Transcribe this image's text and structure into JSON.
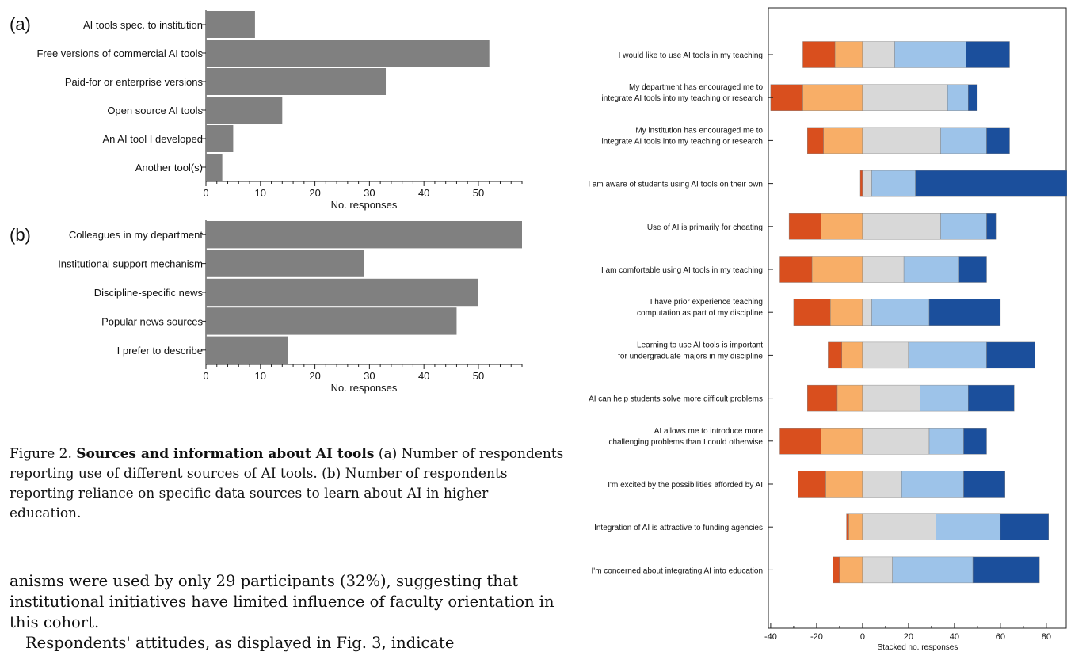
{
  "chart_data": [
    {
      "type": "bar",
      "orientation": "horizontal",
      "panel_label": "(a)",
      "categories": [
        "AI tools spec. to institution",
        "Free versions of commercial AI tools",
        "Paid-for or enterprise versions",
        "Open source AI tools",
        "An AI tool I developed",
        "Another tool(s)"
      ],
      "values": [
        9,
        52,
        33,
        14,
        5,
        3
      ],
      "xlabel": "No. responses",
      "xlim": [
        0,
        58
      ],
      "xticks": [
        0,
        10,
        20,
        30,
        40,
        50
      ],
      "bar_color": "#808080"
    },
    {
      "type": "bar",
      "orientation": "horizontal",
      "panel_label": "(b)",
      "categories": [
        "Colleagues in my department",
        "Institutional support mechanism",
        "Discipline-specific news",
        "Popular news sources",
        "I prefer to describe"
      ],
      "values": [
        58,
        29,
        50,
        46,
        15
      ],
      "xlabel": "No. responses",
      "xlim": [
        0,
        58
      ],
      "xticks": [
        0,
        10,
        20,
        30,
        40,
        50
      ],
      "bar_color": "#808080"
    },
    {
      "type": "bar",
      "orientation": "horizontal",
      "stacked": "diverging",
      "categories": [
        "I would like to use AI tools in my teaching",
        "My department has encouraged me to\nintegrate AI tools into my teaching or research",
        "My institution has encouraged me to\nintegrate AI tools into my teaching or research",
        "I am aware of students using AI tools on their own",
        "Use of AI is primarily for cheating",
        "I am comfortable using AI tools in my teaching",
        "I have prior experience teaching\ncomputation as part of my discipline",
        "Learning to use AI tools is important\nfor undergraduate majors in my discipline",
        "AI can help students solve more difficult problems",
        "AI allows me to introduce more\nchallenging problems than I could otherwise",
        "I'm excited by the possibilities afforded by AI",
        "Integration of AI is attractive to funding agencies",
        "I'm concerned about integrating AI into education"
      ],
      "colors": [
        "#d94f1e",
        "#f8ae67",
        "#d8d8d8",
        "#9dc3e9",
        "#1b4f9c"
      ],
      "segments": [
        [
          -26,
          -12,
          0,
          14,
          45,
          64
        ],
        [
          -40,
          -26,
          0,
          37,
          46,
          50
        ],
        [
          -24,
          -17,
          0,
          34,
          54,
          64
        ],
        [
          -1,
          0,
          0,
          4,
          23,
          89
        ],
        [
          -32,
          -18,
          0,
          34,
          54,
          58
        ],
        [
          -36,
          -22,
          0,
          18,
          42,
          54
        ],
        [
          -30,
          -14,
          0,
          4,
          29,
          60
        ],
        [
          -15,
          -9,
          0,
          20,
          54,
          75
        ],
        [
          -24,
          -11,
          0,
          25,
          46,
          66
        ],
        [
          -36,
          -18,
          0,
          29,
          44,
          54
        ],
        [
          -28,
          -16,
          0,
          17,
          44,
          62
        ],
        [
          -7,
          -6,
          0,
          32,
          60,
          81
        ],
        [
          -13,
          -10,
          0,
          13,
          48,
          77
        ]
      ],
      "xlabel": "Stacked no. responses",
      "xlim": [
        -41,
        89
      ],
      "xticks": [
        -40,
        -20,
        0,
        20,
        40,
        60,
        80
      ]
    }
  ],
  "caption": {
    "figure_label": "Figure 2.",
    "title": "Sources and information about AI tools",
    "text": "(a) Number of respondents reporting use of different sources of AI tools. (b) Number of respondents reporting reliance on specific data sources to learn about AI in higher education."
  },
  "body": {
    "paragraph1": "anisms were used by only 29 participants (32%), suggesting that institutional initiatives have limited influence of faculty orientation in this cohort.",
    "paragraph2": "Respondents' attitudes, as displayed in Fig. 3, indicate"
  }
}
